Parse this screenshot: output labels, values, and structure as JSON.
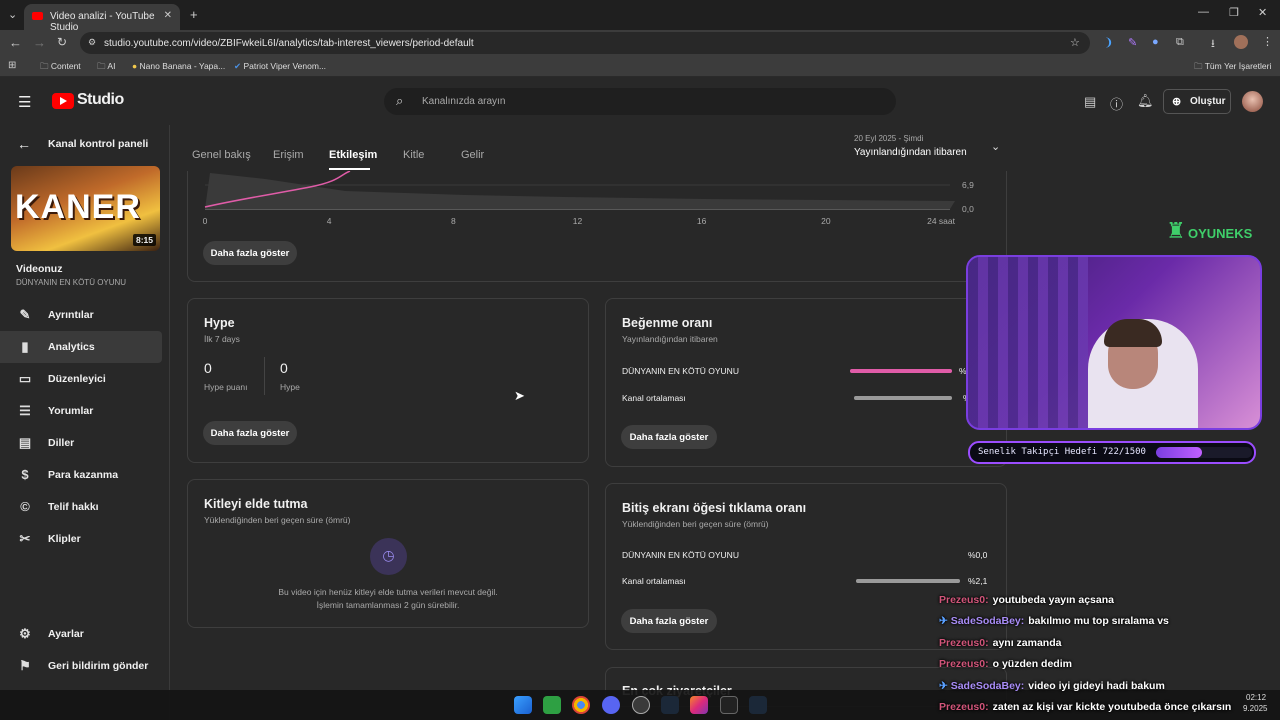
{
  "browser": {
    "tab_title": "Video analizi - YouTube Studio",
    "url": "studio.youtube.com/video/ZBIFwkeiL6I/analytics/tab-interest_viewers/period-default",
    "bookmarks": [
      "Content",
      "AI",
      "Nano Banana - Yapa...",
      "Patriot Viper Venom..."
    ],
    "all_bookmarks": "Tüm Yer İşaretleri"
  },
  "header": {
    "logo": "Studio",
    "search_placeholder": "Kanalınızda arayın",
    "create_label": "Oluştur"
  },
  "sidebar": {
    "back_label": "Kanal kontrol paneli",
    "thumb_duration": "8:15",
    "thumb_title": "KANER",
    "video_heading": "Videonuz",
    "video_title": "DÜNYANIN EN KÖTÜ OYUNU",
    "items": [
      {
        "label": "Ayrıntılar",
        "icon": "pencil-icon"
      },
      {
        "label": "Analytics",
        "icon": "analytics-icon"
      },
      {
        "label": "Düzenleyici",
        "icon": "editor-icon"
      },
      {
        "label": "Yorumlar",
        "icon": "comments-icon"
      },
      {
        "label": "Diller",
        "icon": "subtitles-icon"
      },
      {
        "label": "Para kazanma",
        "icon": "dollar-icon"
      },
      {
        "label": "Telif hakkı",
        "icon": "copyright-icon"
      },
      {
        "label": "Klipler",
        "icon": "scissors-icon"
      }
    ],
    "settings_label": "Ayarlar",
    "feedback_label": "Geri bildirim gönder"
  },
  "tabs": [
    "Genel bakış",
    "Erişim",
    "Etkileşim",
    "Kitle",
    "Gelir"
  ],
  "period": {
    "date": "20 Eyl 2025 - Şimdi",
    "label": "Yayınlandığından itibaren"
  },
  "chart_data": {
    "type": "line",
    "x_ticks": [
      "0",
      "4",
      "8",
      "12",
      "16",
      "20",
      "24 saat"
    ],
    "y_ticks": [
      "6,9",
      "0,0"
    ],
    "xlabel": "",
    "ylabel": ""
  },
  "chart_card": {
    "button": "Daha fazla göster"
  },
  "hype": {
    "title": "Hype",
    "subtitle": "İlk 7 days",
    "score_value": "0",
    "score_label": "Hype puanı",
    "hype_value": "0",
    "hype_label": "Hype",
    "button": "Daha fazla göster"
  },
  "like_ratio": {
    "title": "Beğenme oranı",
    "subtitle": "Yayınlandığından itibaren",
    "rows": [
      {
        "label": "DÜNYANIN EN KÖTÜ OYUNU",
        "value": "%",
        "fill": 1.0,
        "color": "#e05ca8"
      },
      {
        "label": "Kanal ortalaması",
        "value": "%",
        "fill": 1.0,
        "color": "#9a9a9a"
      }
    ],
    "button": "Daha fazla göster"
  },
  "retention": {
    "title": "Kitleyi elde tutma",
    "subtitle": "Yüklendiğinden beri geçen süre (ömrü)",
    "message_line1": "Bu video için henüz kitleyi elde tutma verileri mevcut değil.",
    "message_line2": "İşlemin tamamlanması 2 gün sürebilir."
  },
  "end_screen": {
    "title": "Bitiş ekranı öğesi tıklama oranı",
    "subtitle": "Yüklendiğinden beri geçen süre (ömrü)",
    "rows": [
      {
        "label": "DÜNYANIN EN KÖTÜ OYUNU",
        "value": "%0,0",
        "fill": 0.0,
        "color": "#e05ca8"
      },
      {
        "label": "Kanal ortalaması",
        "value": "%2,1",
        "fill": 1.0,
        "color": "#9a9a9a"
      }
    ],
    "button": "Daha fazla göster"
  },
  "next_card_title": "En çok ziyaretçiler",
  "overlay": {
    "brand": "OYUNEKS",
    "goal_label": "Senelik Takipçi Hedefi 722/1500",
    "goal_progress": 0.48,
    "chat": [
      {
        "user": "Prezeus0:",
        "message": "youtubeda yayın açsana",
        "user_color": "#d2557a"
      },
      {
        "user": "SadeSodaBey:",
        "message": "bakılmıo mu top sıralama vs",
        "user_color": "#a98df7"
      },
      {
        "user": "Prezeus0:",
        "message": "aynı zamanda",
        "user_color": "#d2557a"
      },
      {
        "user": "Prezeus0:",
        "message": "o yüzden dedim",
        "user_color": "#d2557a"
      },
      {
        "user": "SadeSodaBey:",
        "message": "video iyi gideyi hadi bakum",
        "user_color": "#a98df7"
      },
      {
        "user": "Prezeus0:",
        "message": "zaten az kişi var kickte youtubeda önce çıkarsın",
        "user_color": "#d2557a"
      }
    ]
  },
  "taskbar": {
    "time": "02:12",
    "date": "9.2025"
  }
}
